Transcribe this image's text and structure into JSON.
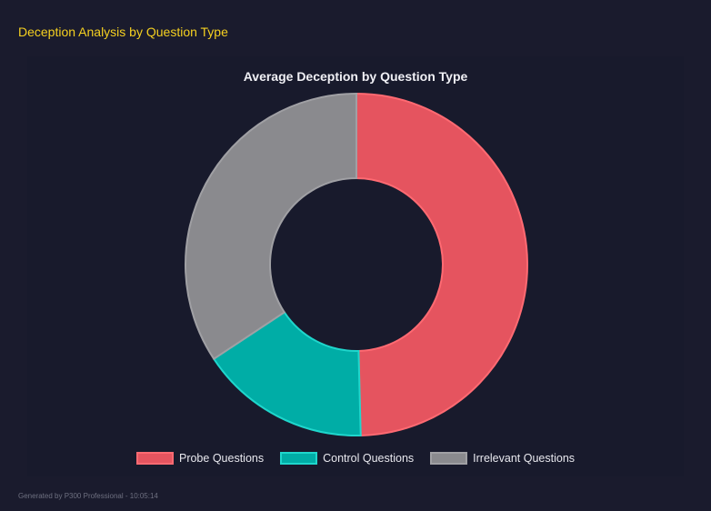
{
  "header": {
    "title": "Deception Analysis by Question Type"
  },
  "chart_data": {
    "type": "pie",
    "variant": "doughnut",
    "title": "Average Deception by Question Type",
    "categories": [
      "Probe Questions",
      "Control Questions",
      "Irrelevant Questions"
    ],
    "values": [
      49.6,
      16.1,
      34.3
    ],
    "colors": [
      "#e5545f",
      "#00ada6",
      "#8a8a8e"
    ],
    "border_colors": [
      "#ff6a72",
      "#1fd6cc",
      "#a0a0a4"
    ],
    "legend_position": "bottom"
  },
  "footer": {
    "text": "Generated by P300 Professional - 10:05:14"
  }
}
